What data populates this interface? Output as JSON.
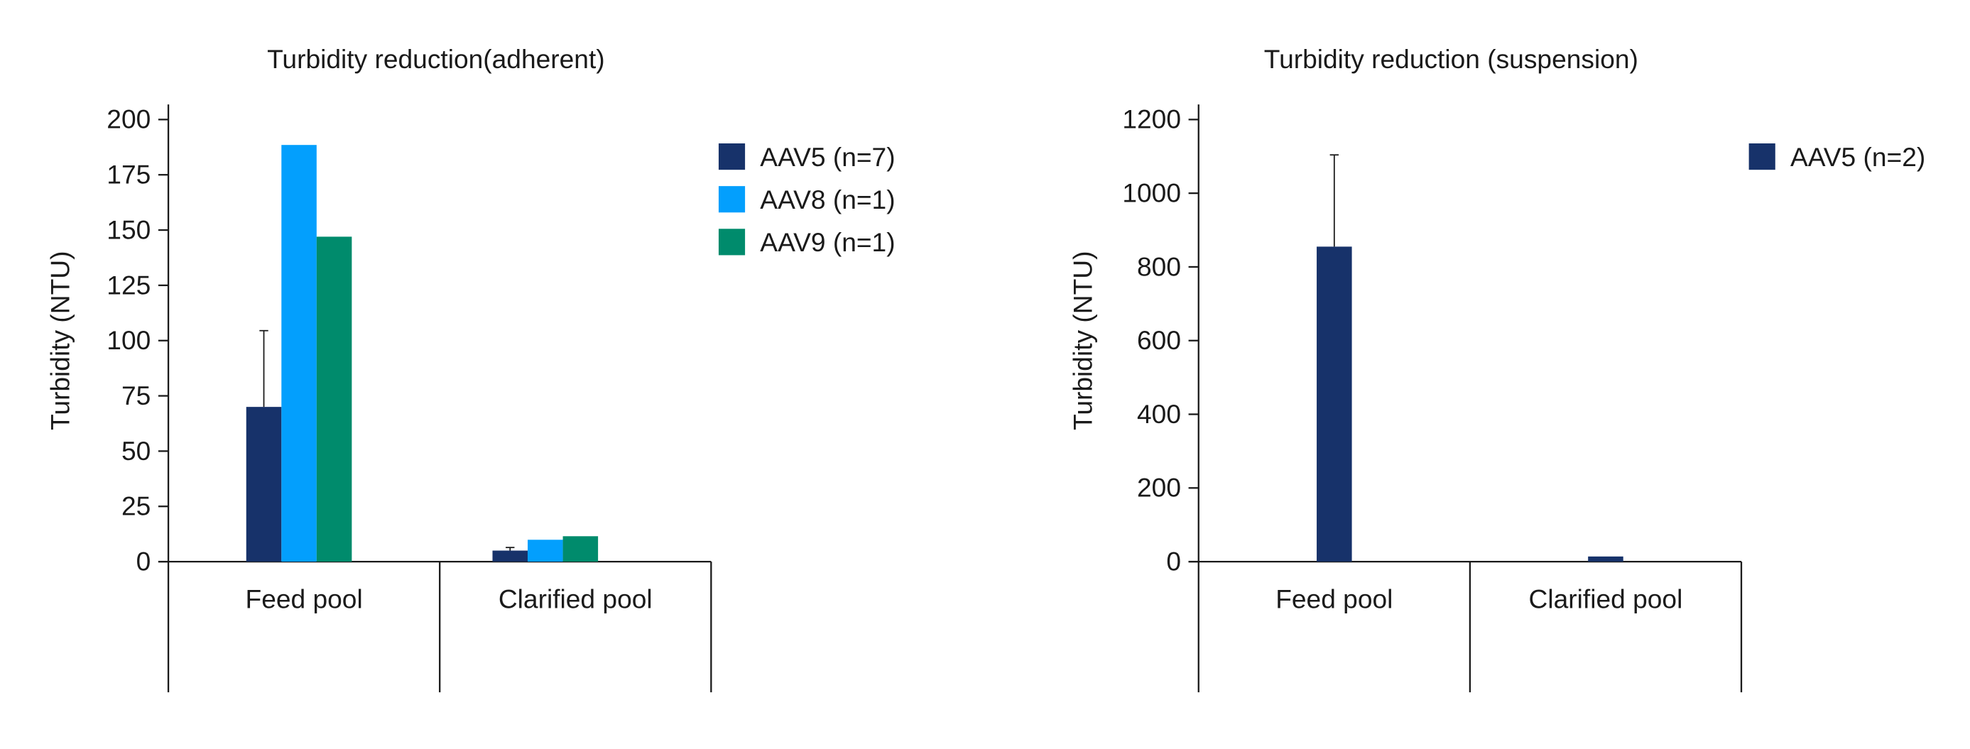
{
  "chart_data": [
    {
      "type": "bar",
      "title": "Turbidity reduction(adherent)",
      "ylabel": "Turbidity (NTU)",
      "xlabel": "",
      "ylim": [
        0,
        200
      ],
      "yticks": [
        0,
        25,
        50,
        75,
        100,
        125,
        150,
        175,
        200
      ],
      "categories": [
        "Feed pool",
        "Clarified pool"
      ],
      "grid": false,
      "legend_position": "right",
      "series": [
        {
          "name": "AAV5 (n=7)",
          "color": "#17326a",
          "values": [
            70,
            5
          ],
          "error_upper": [
            104.5,
            6.4
          ]
        },
        {
          "name": "AAV8 (n=1)",
          "color": "#039ffd",
          "values": [
            188.5,
            9.9
          ]
        },
        {
          "name": "AAV9 (n=1)",
          "color": "#008b6c",
          "values": [
            147,
            11.5
          ]
        }
      ]
    },
    {
      "type": "bar",
      "title": "Turbidity reduction (suspension)",
      "ylabel": "Turbidity (NTU)",
      "xlabel": "",
      "ylim": [
        0,
        1200
      ],
      "yticks": [
        0,
        200,
        400,
        600,
        800,
        1000,
        1200
      ],
      "categories": [
        "Feed pool",
        "Clarified pool"
      ],
      "grid": false,
      "legend_position": "right",
      "series": [
        {
          "name": "AAV5 (n=2)",
          "color": "#17326a",
          "values": [
            855,
            14
          ],
          "error_upper": [
            1104,
            null
          ]
        }
      ]
    }
  ]
}
